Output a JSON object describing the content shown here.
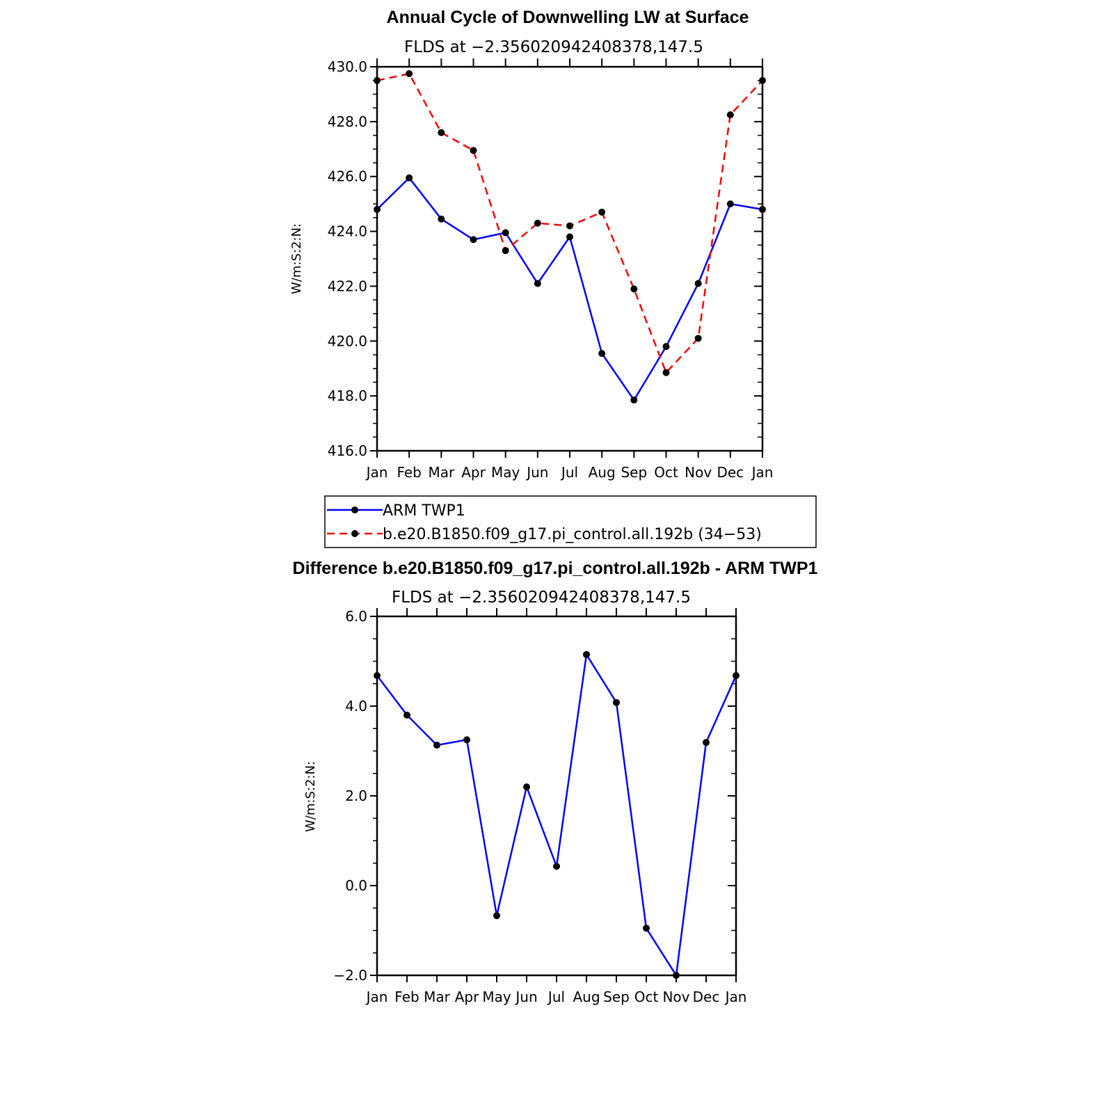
{
  "chart_data": [
    {
      "type": "line",
      "title": "Annual Cycle of Downwelling LW at Surface",
      "subtitle": "FLDS at −2.356020942408378,147.5",
      "ylabel": "W/m:S:2:N:",
      "categories": [
        "Jan",
        "Feb",
        "Mar",
        "Apr",
        "May",
        "Jun",
        "Jul",
        "Aug",
        "Sep",
        "Oct",
        "Nov",
        "Dec",
        "Jan"
      ],
      "ylim": [
        416.0,
        430.0
      ],
      "yticks": [
        "416.0",
        "418.0",
        "420.0",
        "422.0",
        "424.0",
        "426.0",
        "428.0",
        "430.0"
      ],
      "series": [
        {
          "name": "ARM TWP1",
          "color": "#0000ff",
          "dash": "solid",
          "values": [
            424.8,
            425.95,
            424.45,
            423.7,
            423.95,
            422.1,
            423.8,
            419.55,
            417.85,
            419.8,
            422.1,
            425.0,
            424.8
          ]
        },
        {
          "name": "b.e20.B1850.f09_g17.pi_control.all.192b (34−53)",
          "color": "#ff0000",
          "dash": "dashed",
          "values": [
            429.5,
            429.75,
            427.6,
            426.95,
            423.3,
            424.3,
            424.2,
            424.7,
            421.9,
            418.85,
            420.1,
            428.25,
            429.5
          ]
        }
      ],
      "legend": "below"
    },
    {
      "type": "line",
      "title": "Difference b.e20.B1850.f09_g17.pi_control.all.192b - ARM TWP1",
      "subtitle": "FLDS at −2.356020942408378,147.5",
      "ylabel": "W/m:S:2:N:",
      "categories": [
        "Jan",
        "Feb",
        "Mar",
        "Apr",
        "May",
        "Jun",
        "Jul",
        "Aug",
        "Sep",
        "Oct",
        "Nov",
        "Dec",
        "Jan"
      ],
      "ylim": [
        -2.0,
        6.0
      ],
      "yticks": [
        "−2.0",
        "0.0",
        "2.0",
        "4.0",
        "6.0"
      ],
      "series": [
        {
          "color": "#0000ff",
          "dash": "solid",
          "values": [
            4.68,
            3.8,
            3.13,
            3.25,
            -0.67,
            2.2,
            0.43,
            5.15,
            4.08,
            -0.95,
            -2.0,
            3.19,
            4.68
          ]
        }
      ]
    }
  ]
}
